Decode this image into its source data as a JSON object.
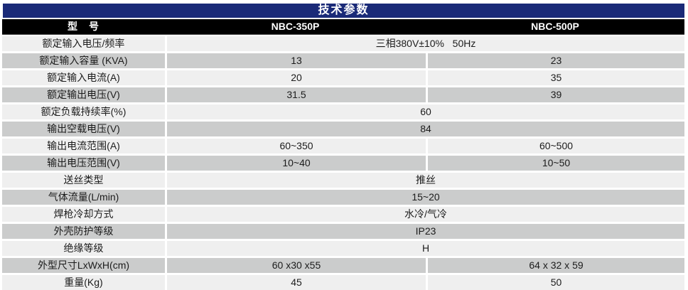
{
  "title": "技术参数",
  "colors": {
    "title_bg": "#1a2a78",
    "model_row_bg": "#000000",
    "row_light": "#efefef",
    "row_dark": "#cbcccc",
    "header_text": "#ffffff",
    "body_text": "#1c1c1c"
  },
  "table": {
    "header": {
      "label": "型　号",
      "models": [
        "NBC-350P",
        "NBC-500P"
      ]
    },
    "rows": [
      {
        "label": "额定输入电压/频率",
        "span": "三相380V±10%   50Hz"
      },
      {
        "label": "额定输入容量 (KVA)",
        "values": [
          "13",
          "23"
        ]
      },
      {
        "label": "额定输入电流(A)",
        "values": [
          "20",
          "35"
        ]
      },
      {
        "label": "额定输出电压(V)",
        "values": [
          "31.5",
          "39"
        ]
      },
      {
        "label": "额定负载持续率(%)",
        "span": "60"
      },
      {
        "label": "输出空载电压(V)",
        "span": "84"
      },
      {
        "label": "输出电流范围(A)",
        "values": [
          "60~350",
          "60~500"
        ]
      },
      {
        "label": "输出电压范围(V)",
        "values": [
          "10~40",
          "10~50"
        ]
      },
      {
        "label": "送丝类型",
        "span": "推丝"
      },
      {
        "label": "气体流量(L/min)",
        "span": "15~20"
      },
      {
        "label": "焊枪冷却方式",
        "span": "水冷/气冷"
      },
      {
        "label": "外壳防护等级",
        "span": "IP23"
      },
      {
        "label": "绝缘等级",
        "span": "H"
      },
      {
        "label": "外型尺寸LxWxH(cm)",
        "values": [
          "60 x30 x55",
          "64 x 32 x 59"
        ]
      },
      {
        "label": "重量(Kg)",
        "values": [
          "45",
          "50"
        ]
      }
    ]
  }
}
